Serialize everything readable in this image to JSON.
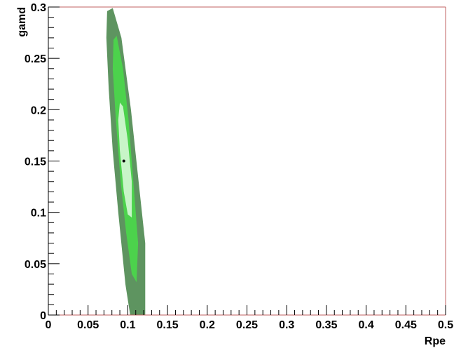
{
  "chart_data": {
    "type": "contour",
    "xlabel": "Rpe",
    "ylabel": "gamd",
    "xlim": [
      0,
      0.5
    ],
    "ylim": [
      0,
      0.3
    ],
    "x_ticks": [
      "0",
      "0.05",
      "0.1",
      "0.15",
      "0.2",
      "0.25",
      "0.3",
      "0.35",
      "0.4",
      "0.45",
      "0.5"
    ],
    "y_ticks": [
      "0",
      "0.05",
      "0.1",
      "0.15",
      "0.2",
      "0.25",
      "0.3"
    ],
    "best_fit_point": {
      "x": 0.095,
      "y": 0.15
    },
    "contours": [
      {
        "level": "outer",
        "color": "#5e9460",
        "points": [
          [
            0.074,
            0.296
          ],
          [
            0.081,
            0.299
          ],
          [
            0.092,
            0.27
          ],
          [
            0.104,
            0.2
          ],
          [
            0.115,
            0.12
          ],
          [
            0.122,
            0.07
          ],
          [
            0.122,
            0.0
          ],
          [
            0.103,
            0.0
          ],
          [
            0.097,
            0.03
          ],
          [
            0.088,
            0.1
          ],
          [
            0.081,
            0.16
          ],
          [
            0.076,
            0.22
          ],
          [
            0.073,
            0.27
          ]
        ]
      },
      {
        "level": "middle",
        "color": "#4cd24c",
        "points": [
          [
            0.082,
            0.268
          ],
          [
            0.086,
            0.272
          ],
          [
            0.094,
            0.24
          ],
          [
            0.101,
            0.19
          ],
          [
            0.107,
            0.13
          ],
          [
            0.113,
            0.07
          ],
          [
            0.111,
            0.032
          ],
          [
            0.105,
            0.04
          ],
          [
            0.098,
            0.08
          ],
          [
            0.091,
            0.13
          ],
          [
            0.085,
            0.19
          ],
          [
            0.081,
            0.24
          ]
        ]
      },
      {
        "level": "inner",
        "color": "#c8f5c8",
        "points": [
          [
            0.09,
            0.207
          ],
          [
            0.094,
            0.203
          ],
          [
            0.1,
            0.17
          ],
          [
            0.105,
            0.13
          ],
          [
            0.105,
            0.095
          ],
          [
            0.1,
            0.098
          ],
          [
            0.095,
            0.12
          ],
          [
            0.09,
            0.16
          ],
          [
            0.088,
            0.19
          ]
        ]
      }
    ]
  }
}
